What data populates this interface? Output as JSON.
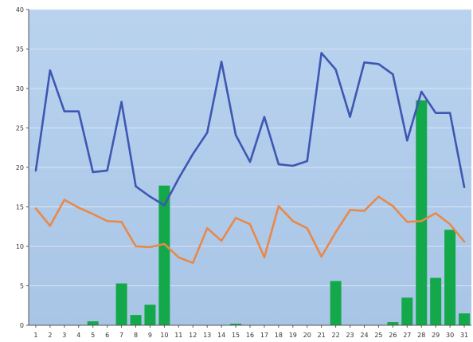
{
  "chart_data": {
    "type": "bar",
    "title": "",
    "xlabel": "",
    "ylabel": "",
    "categories": [
      "1",
      "2",
      "3",
      "4",
      "5",
      "6",
      "7",
      "8",
      "9",
      "10",
      "11",
      "12",
      "13",
      "14",
      "15",
      "16",
      "17",
      "18",
      "19",
      "20",
      "21",
      "22",
      "23",
      "24",
      "25",
      "26",
      "27",
      "28",
      "29",
      "30",
      "31"
    ],
    "ylim": [
      0,
      40
    ],
    "yticks": [
      0,
      5,
      10,
      15,
      20,
      25,
      30,
      35,
      40
    ],
    "grid": true,
    "legend": "none",
    "series": [
      {
        "type": "bar",
        "color": "#13a84a",
        "values": [
          0,
          0,
          0,
          0,
          0.5,
          0,
          5.3,
          1.3,
          2.6,
          17.7,
          0,
          0,
          0,
          0,
          0.2,
          0,
          0,
          0,
          0,
          0,
          0,
          5.6,
          0,
          0,
          0,
          0.4,
          3.5,
          28.5,
          6,
          12.1,
          1.5
        ]
      },
      {
        "type": "line",
        "color": "#3e57b2",
        "values": [
          19.6,
          32.3,
          27.1,
          27.1,
          19.4,
          19.6,
          28.3,
          17.6,
          16.3,
          15.2,
          18.6,
          21.7,
          24.4,
          33.4,
          24.1,
          20.7,
          26.4,
          20.4,
          20.2,
          20.8,
          34.5,
          32.4,
          26.4,
          33.3,
          33.1,
          31.8,
          23.4,
          29.6,
          26.9,
          26.9,
          17.5
        ]
      },
      {
        "type": "line",
        "color": "#e8894a",
        "values": [
          14.8,
          12.6,
          15.9,
          14.9,
          14.1,
          13.2,
          13.1,
          10.0,
          9.9,
          10.3,
          8.6,
          7.9,
          12.3,
          10.7,
          13.6,
          12.8,
          8.6,
          15.1,
          13.2,
          12.3,
          8.7,
          11.8,
          14.6,
          14.5,
          16.3,
          15.1,
          13.1,
          13.2,
          14.2,
          12.8,
          10.6
        ]
      }
    ]
  }
}
